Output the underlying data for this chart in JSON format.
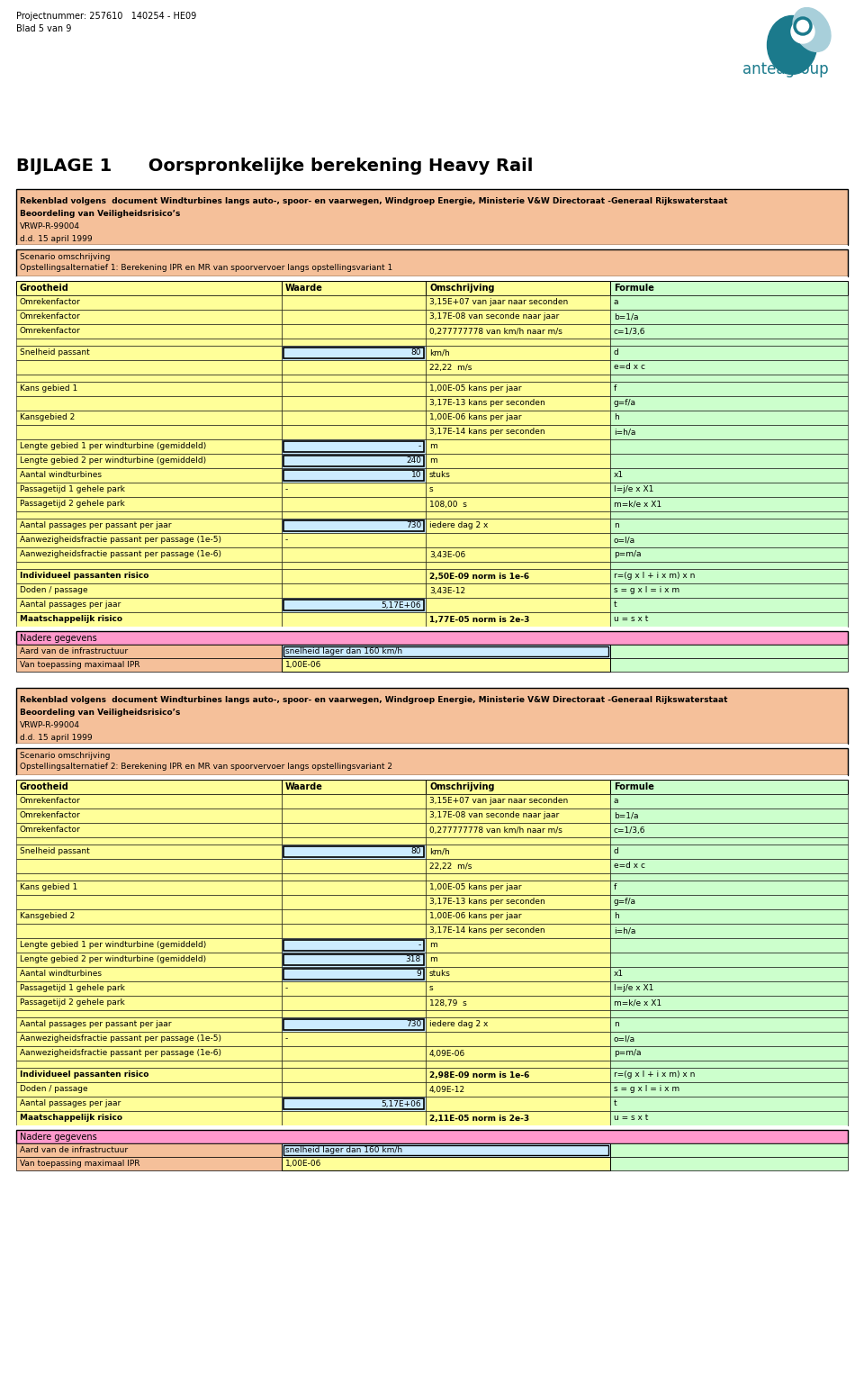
{
  "header_line1": "Projectnummer: 257610   140254 - HE09",
  "header_line2": "Blad 5 van 9",
  "title": "BIJLAGE 1      Oorspronkelijke berekening Heavy Rail",
  "ref_text_line1": "Rekenblad volgens  document Windturbines langs auto-, spoor- en vaarwegen, Windgroep Energie, Ministerie V&W Directoraat -Generaal Rijkswaterstaat",
  "ref_text_line2": "Beoordeling van Veiligheidsrisico’s",
  "ref_text_line3": "VRWP-R-99004",
  "ref_text_line4": "d.d. 15 april 1999",
  "scenario1_line1": "Scenario omschrijving",
  "scenario1_line2": "Opstellingsalternatief 1: Berekening IPR en MR van spoorvervoer langs opstellingsvariant 1",
  "scenario2_line1": "Scenario omschrijving",
  "scenario2_line2": "Opstellingsalternatief 2: Berekening IPR en MR van spoorvervoer langs opstellingsvariant 2",
  "col_headers": [
    "Grootheid",
    "Waarde",
    "Omschrijving",
    "Formule"
  ],
  "orange_bg": "#F5C09A",
  "yellow_bg": "#FFFF99",
  "green_bg": "#CCFFCC",
  "pink_bg": "#FF99CC",
  "blue_input": "#CCECFF",
  "white_bg": "#FFFFFF",
  "table1_rows": [
    {
      "col0": "Omrekenfactor",
      "col1": "",
      "col2": "3,15E+07 van jaar naar seconden",
      "col3": "a",
      "bg0": "#FFFF99",
      "bg1": "#FFFF99",
      "bg2": "#FFFF99",
      "bg3": "#CCFFCC"
    },
    {
      "col0": "Omrekenfactor",
      "col1": "",
      "col2": "3,17E-08 van seconde naar jaar",
      "col3": "b=1/a",
      "bg0": "#FFFF99",
      "bg1": "#FFFF99",
      "bg2": "#FFFF99",
      "bg3": "#CCFFCC"
    },
    {
      "col0": "Omrekenfactor",
      "col1": "",
      "col2": "0,277777778 van km/h naar m/s",
      "col3": "c=1/3,6",
      "bg0": "#FFFF99",
      "bg1": "#FFFF99",
      "bg2": "#FFFF99",
      "bg3": "#CCFFCC"
    },
    {
      "col0": "",
      "col1": "",
      "col2": "",
      "col3": "",
      "bg0": "#FFFF99",
      "bg1": "#FFFF99",
      "bg2": "#FFFF99",
      "bg3": "#CCFFCC",
      "empty": true
    },
    {
      "col0": "Snelheid passant",
      "col1": "80",
      "col2": "km/h",
      "col3": "d",
      "bg0": "#FFFF99",
      "bg1": "#CCECFF",
      "bg2": "#FFFF99",
      "bg3": "#CCFFCC",
      "input1": true
    },
    {
      "col0": "",
      "col1": "",
      "col2": "22,22  m/s",
      "col3": "e=d x c",
      "bg0": "#FFFF99",
      "bg1": "#FFFF99",
      "bg2": "#FFFF99",
      "bg3": "#CCFFCC"
    },
    {
      "col0": "",
      "col1": "",
      "col2": "",
      "col3": "",
      "bg0": "#FFFF99",
      "bg1": "#FFFF99",
      "bg2": "#FFFF99",
      "bg3": "#CCFFCC",
      "empty": true
    },
    {
      "col0": "Kans gebied 1",
      "col1": "",
      "col2": "1,00E-05 kans per jaar",
      "col3": "f",
      "bg0": "#FFFF99",
      "bg1": "#FFFF99",
      "bg2": "#FFFF99",
      "bg3": "#CCFFCC"
    },
    {
      "col0": "",
      "col1": "",
      "col2": "3,17E-13 kans per seconden",
      "col3": "g=f/a",
      "bg0": "#FFFF99",
      "bg1": "#FFFF99",
      "bg2": "#FFFF99",
      "bg3": "#CCFFCC"
    },
    {
      "col0": "Kansgebied 2",
      "col1": "",
      "col2": "1,00E-06 kans per jaar",
      "col3": "h",
      "bg0": "#FFFF99",
      "bg1": "#FFFF99",
      "bg2": "#FFFF99",
      "bg3": "#CCFFCC"
    },
    {
      "col0": "",
      "col1": "",
      "col2": "3,17E-14 kans per seconden",
      "col3": "i=h/a",
      "bg0": "#FFFF99",
      "bg1": "#FFFF99",
      "bg2": "#FFFF99",
      "bg3": "#CCFFCC"
    },
    {
      "col0": "Lengte gebied 1 per windturbine (gemiddeld)",
      "col1": "-",
      "col2": "m",
      "col3": "",
      "bg0": "#FFFF99",
      "bg1": "#CCECFF",
      "bg2": "#FFFF99",
      "bg3": "#CCFFCC",
      "input1": true
    },
    {
      "col0": "Lengte gebied 2 per windturbine (gemiddeld)",
      "col1": "240",
      "col2": "m",
      "col3": "",
      "bg0": "#FFFF99",
      "bg1": "#CCECFF",
      "bg2": "#FFFF99",
      "bg3": "#CCFFCC",
      "input1": true
    },
    {
      "col0": "Aantal windturbines",
      "col1": "10",
      "col2": "stuks",
      "col3": "x1",
      "bg0": "#FFFF99",
      "bg1": "#CCECFF",
      "bg2": "#FFFF99",
      "bg3": "#CCFFCC",
      "input1": true
    },
    {
      "col0": "Passagetijd 1 gehele park",
      "col1": "-",
      "col2": "s",
      "col3": "l=j/e x X1",
      "bg0": "#FFFF99",
      "bg1": "#FFFF99",
      "bg2": "#FFFF99",
      "bg3": "#CCFFCC"
    },
    {
      "col0": "Passagetijd 2 gehele park",
      "col1": "",
      "col2": "108,00  s",
      "col3": "m=k/e x X1",
      "bg0": "#FFFF99",
      "bg1": "#FFFF99",
      "bg2": "#FFFF99",
      "bg3": "#CCFFCC"
    },
    {
      "col0": "",
      "col1": "",
      "col2": "",
      "col3": "",
      "bg0": "#FFFF99",
      "bg1": "#FFFF99",
      "bg2": "#FFFF99",
      "bg3": "#CCFFCC",
      "empty": true
    },
    {
      "col0": "Aantal passages per passant per jaar",
      "col1": "730",
      "col2": "iedere dag 2 x",
      "col3": "n",
      "bg0": "#FFFF99",
      "bg1": "#CCECFF",
      "bg2": "#FFFF99",
      "bg3": "#CCFFCC",
      "input1": true
    },
    {
      "col0": "Aanwezigheidsfractie passant per passage (1e-5)",
      "col1": "-",
      "col2": "",
      "col3": "o=l/a",
      "bg0": "#FFFF99",
      "bg1": "#FFFF99",
      "bg2": "#FFFF99",
      "bg3": "#CCFFCC"
    },
    {
      "col0": "Aanwezigheidsfractie passant per passage (1e-6)",
      "col1": "",
      "col2": "3,43E-06",
      "col3": "p=m/a",
      "bg0": "#FFFF99",
      "bg1": "#FFFF99",
      "bg2": "#FFFF99",
      "bg3": "#CCFFCC"
    },
    {
      "col0": "",
      "col1": "",
      "col2": "",
      "col3": "",
      "bg0": "#FFFF99",
      "bg1": "#FFFF99",
      "bg2": "#FFFF99",
      "bg3": "#CCFFCC",
      "empty": true
    },
    {
      "col0": "Individueel passanten risico",
      "col1": "",
      "col2": "2,50E-09 norm is 1e-6",
      "col3": "r=(g x l + i x m) x n",
      "bg0": "#FFFF99",
      "bg1": "#FFFF99",
      "bg2": "#FFFF99",
      "bg3": "#CCFFCC",
      "bold0": true,
      "bold2": true
    },
    {
      "col0": "Doden / passage",
      "col1": "",
      "col2": "3,43E-12",
      "col3": "s = g x l = i x m",
      "bg0": "#FFFF99",
      "bg1": "#FFFF99",
      "bg2": "#FFFF99",
      "bg3": "#CCFFCC"
    },
    {
      "col0": "Aantal passages per jaar",
      "col1": "5,17E+06",
      "col2": "",
      "col3": "t",
      "bg0": "#FFFF99",
      "bg1": "#CCECFF",
      "bg2": "#FFFF99",
      "bg3": "#CCFFCC",
      "input1": true
    },
    {
      "col0": "Maatschappelijk risico",
      "col1": "",
      "col2": "1,77E-05 norm is 2e-3",
      "col3": "u = s x t",
      "bg0": "#FFFF99",
      "bg1": "#FFFF99",
      "bg2": "#FFFF99",
      "bg3": "#CCFFCC",
      "bold0": true,
      "bold2": true
    }
  ],
  "nadere1_label": "Nadere gegevens",
  "nadere_rows1": [
    {
      "col0": "Aard van de infrastructuur",
      "col1": "snelheid lager dan 160 km/h",
      "col1_bg": "#CCECFF"
    },
    {
      "col0": "Van toepassing maximaal IPR",
      "col1": "1,00E-06",
      "col1_bg": "#FFFF99"
    }
  ],
  "table2_rows": [
    {
      "col0": "Omrekenfactor",
      "col1": "",
      "col2": "3,15E+07 van jaar naar seconden",
      "col3": "a",
      "bg0": "#FFFF99",
      "bg1": "#FFFF99",
      "bg2": "#FFFF99",
      "bg3": "#CCFFCC"
    },
    {
      "col0": "Omrekenfactor",
      "col1": "",
      "col2": "3,17E-08 van seconde naar jaar",
      "col3": "b=1/a",
      "bg0": "#FFFF99",
      "bg1": "#FFFF99",
      "bg2": "#FFFF99",
      "bg3": "#CCFFCC"
    },
    {
      "col0": "Omrekenfactor",
      "col1": "",
      "col2": "0,277777778 van km/h naar m/s",
      "col3": "c=1/3,6",
      "bg0": "#FFFF99",
      "bg1": "#FFFF99",
      "bg2": "#FFFF99",
      "bg3": "#CCFFCC"
    },
    {
      "col0": "",
      "col1": "",
      "col2": "",
      "col3": "",
      "bg0": "#FFFF99",
      "bg1": "#FFFF99",
      "bg2": "#FFFF99",
      "bg3": "#CCFFCC",
      "empty": true
    },
    {
      "col0": "Snelheid passant",
      "col1": "80",
      "col2": "km/h",
      "col3": "d",
      "bg0": "#FFFF99",
      "bg1": "#CCECFF",
      "bg2": "#FFFF99",
      "bg3": "#CCFFCC",
      "input1": true
    },
    {
      "col0": "",
      "col1": "",
      "col2": "22,22  m/s",
      "col3": "e=d x c",
      "bg0": "#FFFF99",
      "bg1": "#FFFF99",
      "bg2": "#FFFF99",
      "bg3": "#CCFFCC"
    },
    {
      "col0": "",
      "col1": "",
      "col2": "",
      "col3": "",
      "bg0": "#FFFF99",
      "bg1": "#FFFF99",
      "bg2": "#FFFF99",
      "bg3": "#CCFFCC",
      "empty": true
    },
    {
      "col0": "Kans gebied 1",
      "col1": "",
      "col2": "1,00E-05 kans per jaar",
      "col3": "f",
      "bg0": "#FFFF99",
      "bg1": "#FFFF99",
      "bg2": "#FFFF99",
      "bg3": "#CCFFCC"
    },
    {
      "col0": "",
      "col1": "",
      "col2": "3,17E-13 kans per seconden",
      "col3": "g=f/a",
      "bg0": "#FFFF99",
      "bg1": "#FFFF99",
      "bg2": "#FFFF99",
      "bg3": "#CCFFCC"
    },
    {
      "col0": "Kansgebied 2",
      "col1": "",
      "col2": "1,00E-06 kans per jaar",
      "col3": "h",
      "bg0": "#FFFF99",
      "bg1": "#FFFF99",
      "bg2": "#FFFF99",
      "bg3": "#CCFFCC"
    },
    {
      "col0": "",
      "col1": "",
      "col2": "3,17E-14 kans per seconden",
      "col3": "i=h/a",
      "bg0": "#FFFF99",
      "bg1": "#FFFF99",
      "bg2": "#FFFF99",
      "bg3": "#CCFFCC"
    },
    {
      "col0": "Lengte gebied 1 per windturbine (gemiddeld)",
      "col1": "-",
      "col2": "m",
      "col3": "",
      "bg0": "#FFFF99",
      "bg1": "#CCECFF",
      "bg2": "#FFFF99",
      "bg3": "#CCFFCC",
      "input1": true
    },
    {
      "col0": "Lengte gebied 2 per windturbine (gemiddeld)",
      "col1": "318",
      "col2": "m",
      "col3": "",
      "bg0": "#FFFF99",
      "bg1": "#CCECFF",
      "bg2": "#FFFF99",
      "bg3": "#CCFFCC",
      "input1": true
    },
    {
      "col0": "Aantal windturbines",
      "col1": "9",
      "col2": "stuks",
      "col3": "x1",
      "bg0": "#FFFF99",
      "bg1": "#CCECFF",
      "bg2": "#FFFF99",
      "bg3": "#CCFFCC",
      "input1": true
    },
    {
      "col0": "Passagetijd 1 gehele park",
      "col1": "-",
      "col2": "s",
      "col3": "l=j/e x X1",
      "bg0": "#FFFF99",
      "bg1": "#FFFF99",
      "bg2": "#FFFF99",
      "bg3": "#CCFFCC"
    },
    {
      "col0": "Passagetijd 2 gehele park",
      "col1": "",
      "col2": "128,79  s",
      "col3": "m=k/e x X1",
      "bg0": "#FFFF99",
      "bg1": "#FFFF99",
      "bg2": "#FFFF99",
      "bg3": "#CCFFCC"
    },
    {
      "col0": "",
      "col1": "",
      "col2": "",
      "col3": "",
      "bg0": "#FFFF99",
      "bg1": "#FFFF99",
      "bg2": "#FFFF99",
      "bg3": "#CCFFCC",
      "empty": true
    },
    {
      "col0": "Aantal passages per passant per jaar",
      "col1": "730",
      "col2": "iedere dag 2 x",
      "col3": "n",
      "bg0": "#FFFF99",
      "bg1": "#CCECFF",
      "bg2": "#FFFF99",
      "bg3": "#CCFFCC",
      "input1": true
    },
    {
      "col0": "Aanwezigheidsfractie passant per passage (1e-5)",
      "col1": "-",
      "col2": "",
      "col3": "o=l/a",
      "bg0": "#FFFF99",
      "bg1": "#FFFF99",
      "bg2": "#FFFF99",
      "bg3": "#CCFFCC"
    },
    {
      "col0": "Aanwezigheidsfractie passant per passage (1e-6)",
      "col1": "",
      "col2": "4,09E-06",
      "col3": "p=m/a",
      "bg0": "#FFFF99",
      "bg1": "#FFFF99",
      "bg2": "#FFFF99",
      "bg3": "#CCFFCC"
    },
    {
      "col0": "",
      "col1": "",
      "col2": "",
      "col3": "",
      "bg0": "#FFFF99",
      "bg1": "#FFFF99",
      "bg2": "#FFFF99",
      "bg3": "#CCFFCC",
      "empty": true
    },
    {
      "col0": "Individueel passanten risico",
      "col1": "",
      "col2": "2,98E-09 norm is 1e-6",
      "col3": "r=(g x l + i x m) x n",
      "bg0": "#FFFF99",
      "bg1": "#FFFF99",
      "bg2": "#FFFF99",
      "bg3": "#CCFFCC",
      "bold0": true,
      "bold2": true
    },
    {
      "col0": "Doden / passage",
      "col1": "",
      "col2": "4,09E-12",
      "col3": "s = g x l = i x m",
      "bg0": "#FFFF99",
      "bg1": "#FFFF99",
      "bg2": "#FFFF99",
      "bg3": "#CCFFCC"
    },
    {
      "col0": "Aantal passages per jaar",
      "col1": "5,17E+06",
      "col2": "",
      "col3": "t",
      "bg0": "#FFFF99",
      "bg1": "#CCECFF",
      "bg2": "#FFFF99",
      "bg3": "#CCFFCC",
      "input1": true
    },
    {
      "col0": "Maatschappelijk risico",
      "col1": "",
      "col2": "2,11E-05 norm is 2e-3",
      "col3": "u = s x t",
      "bg0": "#FFFF99",
      "bg1": "#FFFF99",
      "bg2": "#FFFF99",
      "bg3": "#CCFFCC",
      "bold0": true,
      "bold2": true
    }
  ],
  "nadere_rows2": [
    {
      "col0": "Aard van de infrastructuur",
      "col1": "snelheid lager dan 160 km/h",
      "col1_bg": "#CCECFF"
    },
    {
      "col0": "Van toepassing maximaal IPR",
      "col1": "1,00E-06",
      "col1_bg": "#FFFF99"
    }
  ]
}
